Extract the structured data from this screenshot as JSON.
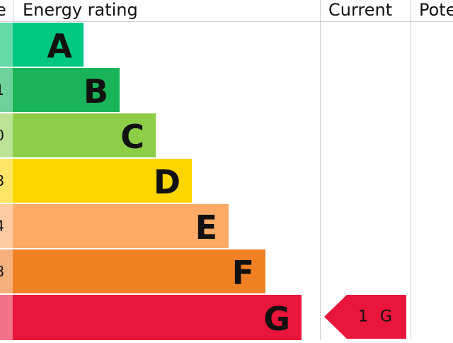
{
  "header": {
    "score": "e",
    "rating": "Energy rating",
    "current": "Current",
    "potential": "Pote"
  },
  "bands": [
    {
      "score": "",
      "letter": "A"
    },
    {
      "score": "1",
      "letter": "B"
    },
    {
      "score": "0",
      "letter": "C"
    },
    {
      "score": "8",
      "letter": "D"
    },
    {
      "score": "4",
      "letter": "E"
    },
    {
      "score": "8",
      "letter": "F"
    },
    {
      "score": "",
      "letter": "G"
    }
  ],
  "current": {
    "score": "1",
    "rating": "G"
  }
}
